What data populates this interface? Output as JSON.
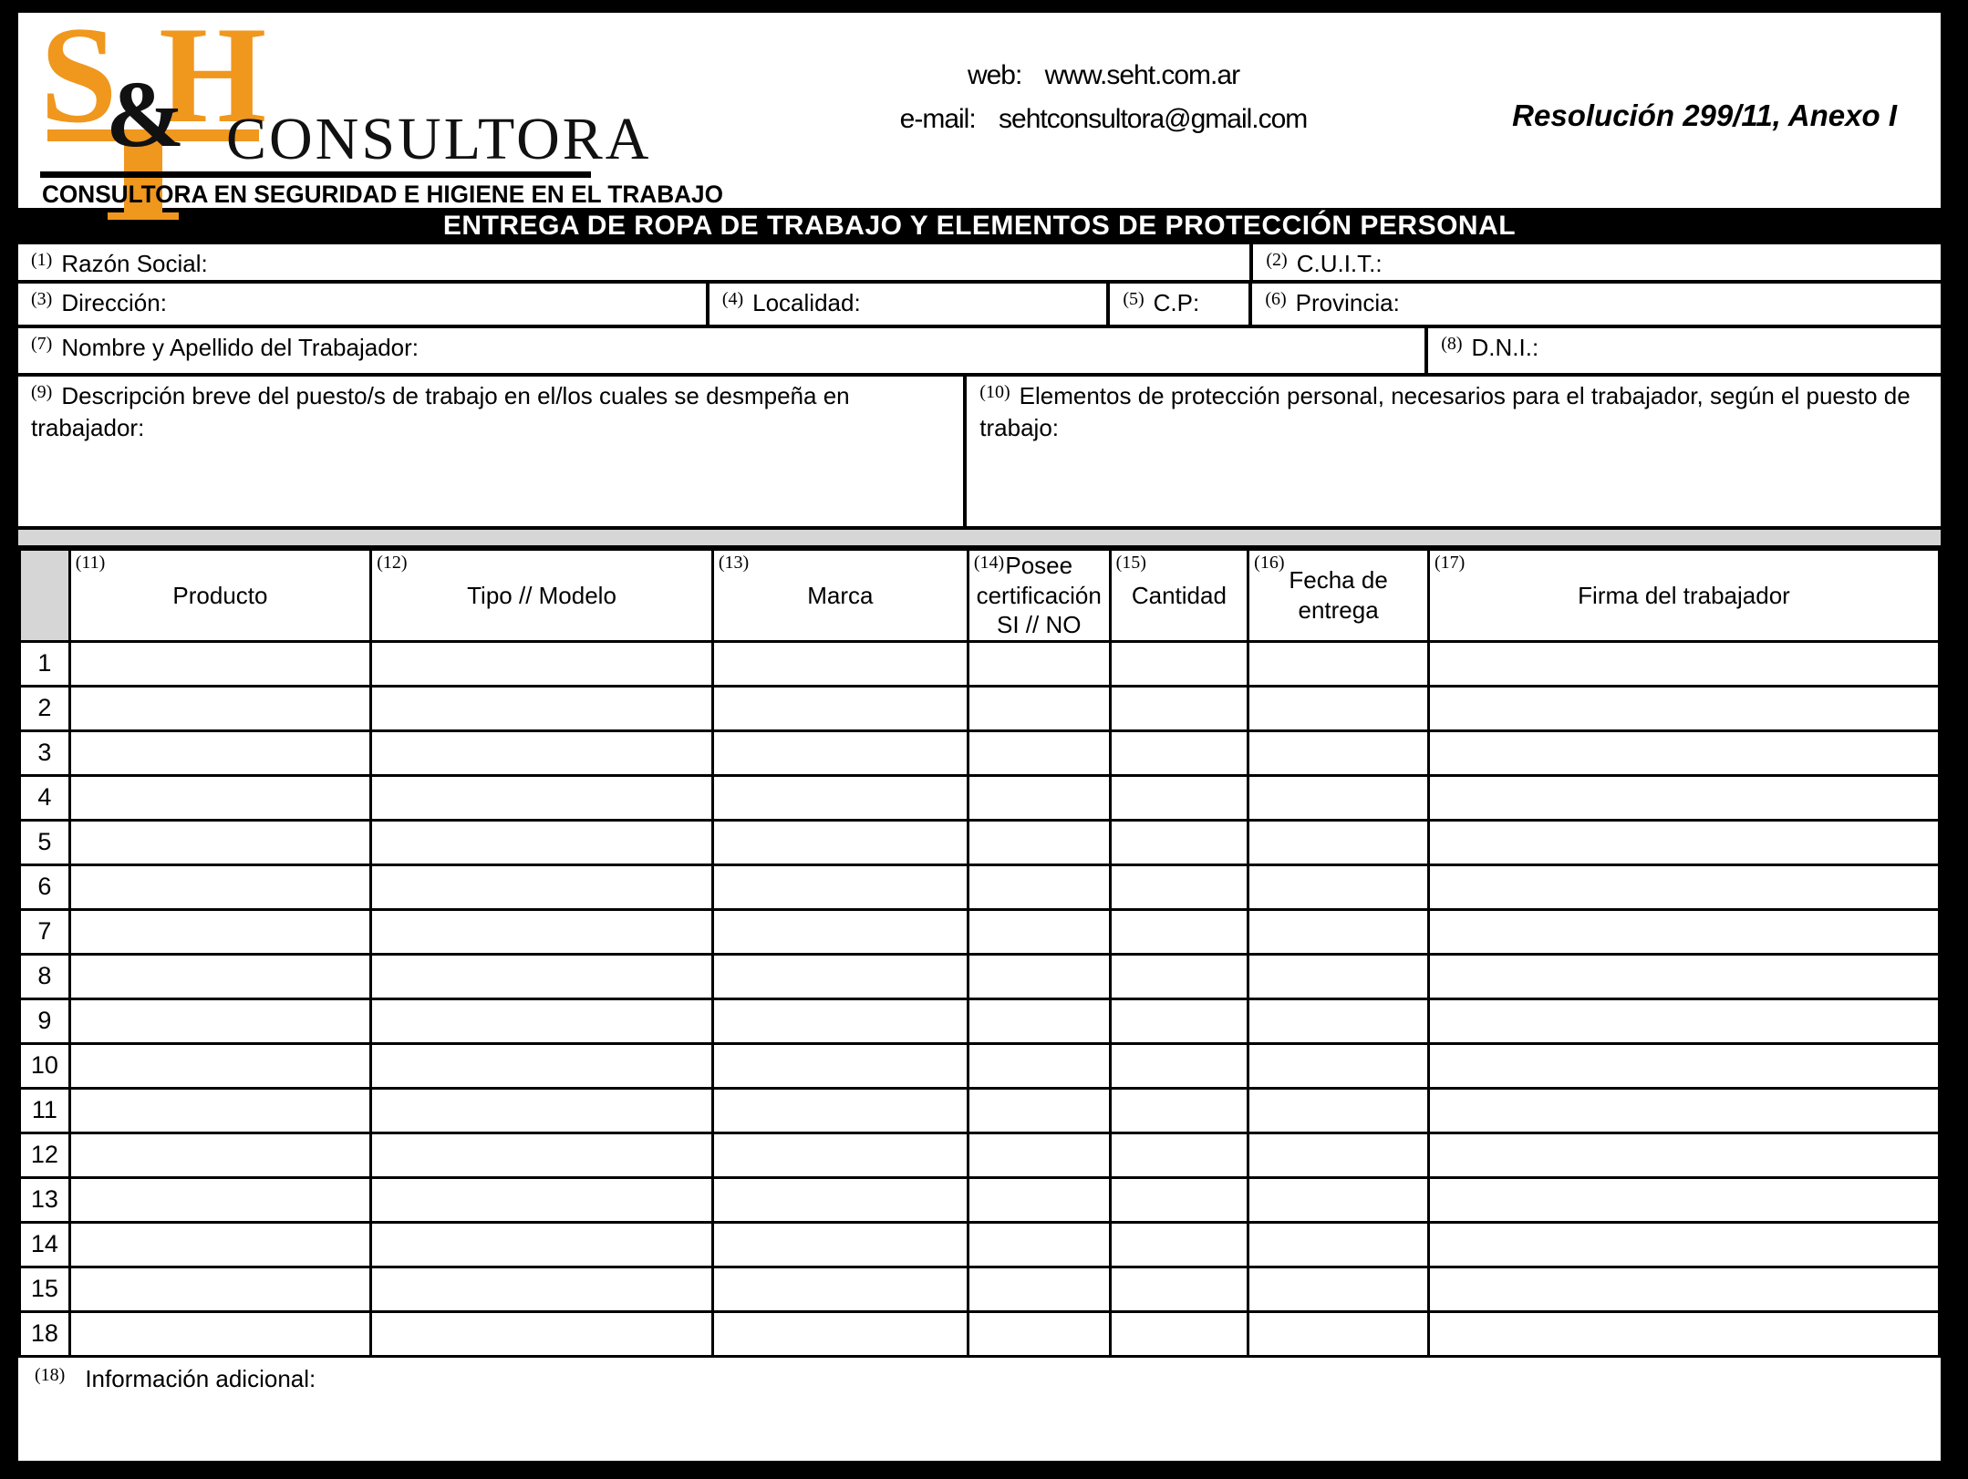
{
  "colors": {
    "orange": "#F0971E",
    "gray": "#D6D6D6",
    "black": "#000000",
    "white": "#FFFFFF"
  },
  "header": {
    "logo": {
      "letter_s": "S",
      "letter_amp": "&",
      "letter_h": "H",
      "wordmark": "CONSULTORA",
      "tagline": "CONSULTORA EN SEGURIDAD E HIGIENE EN EL TRABAJO"
    },
    "contact": {
      "web_label": "web:",
      "web_value": "www.seht.com.ar",
      "email_label": "e-mail:",
      "email_value": "sehtconsultora@gmail.com"
    },
    "resolution": "Resolución 299/11, Anexo I"
  },
  "title": "ENTREGA DE ROPA DE TRABAJO Y ELEMENTOS DE PROTECCIÓN PERSONAL",
  "fields": {
    "razon_social": {
      "num": "(1)",
      "label": "Razón Social:"
    },
    "cuit": {
      "num": "(2)",
      "label": "C.U.I.T.:"
    },
    "direccion": {
      "num": "(3)",
      "label": "Dirección:"
    },
    "localidad": {
      "num": "(4)",
      "label": "Localidad:"
    },
    "cp": {
      "num": "(5)",
      "label": "C.P:"
    },
    "provincia": {
      "num": "(6)",
      "label": "Provincia:"
    },
    "nombre": {
      "num": "(7)",
      "label": "Nombre y Apellido del Trabajador:"
    },
    "dni": {
      "num": "(8)",
      "label": "D.N.I.:"
    },
    "descripcion": {
      "num": "(9)",
      "label": "Descripción breve del puesto/s de trabajo en el/los cuales se desmpeña en trabajador:"
    },
    "elementos": {
      "num": "(10)",
      "label": "Elementos de protección personal, necesarios para el trabajador, según el puesto de trabajo:"
    },
    "info_adicional": {
      "num": "(18)",
      "label": "Información adicional:"
    }
  },
  "table": {
    "columns": [
      {
        "num": "",
        "label": ""
      },
      {
        "num": "(11)",
        "label": "Producto"
      },
      {
        "num": "(12)",
        "label": "Tipo // Modelo"
      },
      {
        "num": "(13)",
        "label": "Marca"
      },
      {
        "num": "(14)",
        "label": "Posee certificación SI // NO"
      },
      {
        "num": "(15)",
        "label": "Cantidad"
      },
      {
        "num": "(16)",
        "label": "Fecha de entrega"
      },
      {
        "num": "(17)",
        "label": "Firma del trabajador"
      }
    ],
    "row_numbers": [
      "1",
      "2",
      "3",
      "4",
      "5",
      "6",
      "7",
      "8",
      "9",
      "10",
      "11",
      "12",
      "13",
      "14",
      "15",
      "18"
    ]
  }
}
